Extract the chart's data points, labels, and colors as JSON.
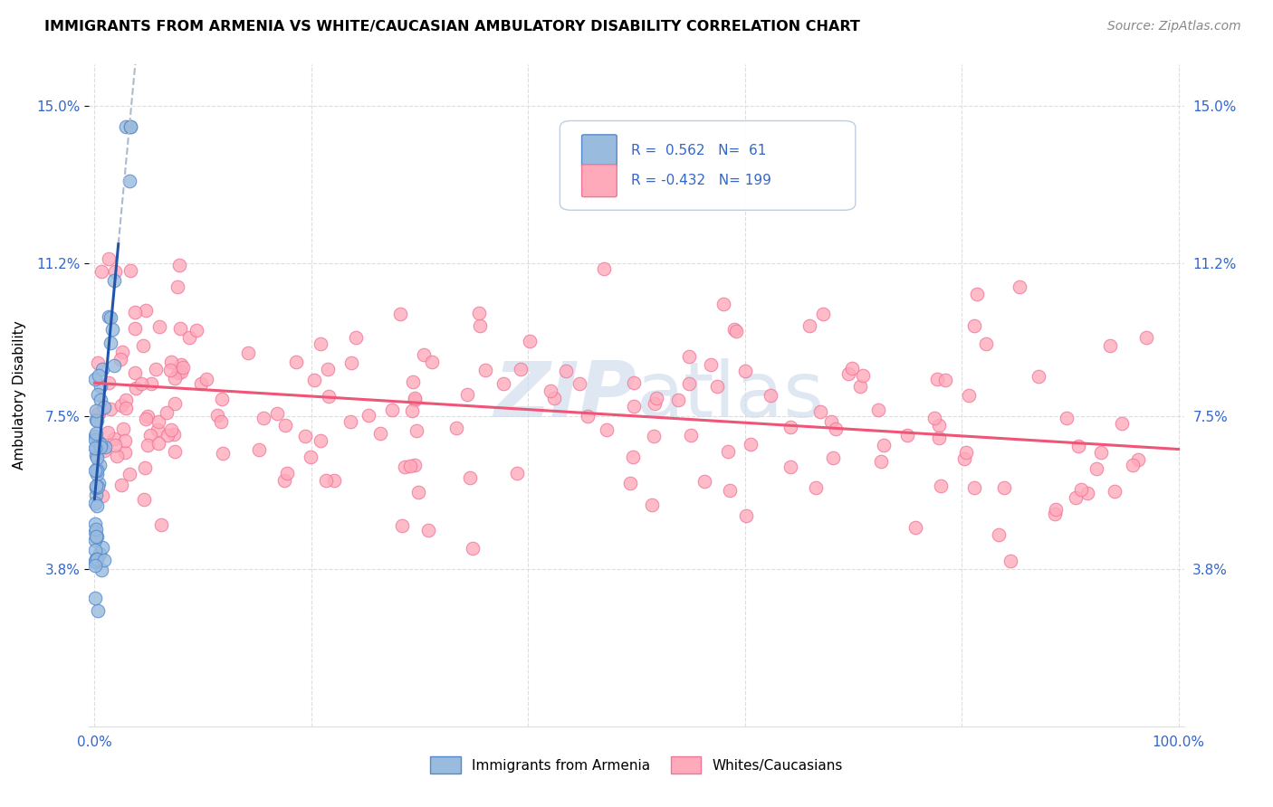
{
  "title": "IMMIGRANTS FROM ARMENIA VS WHITE/CAUCASIAN AMBULATORY DISABILITY CORRELATION CHART",
  "source": "Source: ZipAtlas.com",
  "ylabel": "Ambulatory Disability",
  "yticks": [
    0.038,
    0.075,
    0.112,
    0.15
  ],
  "ytick_labels": [
    "3.8%",
    "7.5%",
    "11.2%",
    "15.0%"
  ],
  "xticks": [
    0.0,
    0.2,
    0.4,
    0.6,
    0.8,
    1.0
  ],
  "xtick_labels": [
    "0.0%",
    "",
    "",
    "",
    "",
    "100.0%"
  ],
  "blue_color": "#99BBDD",
  "pink_color": "#FFAABB",
  "blue_edge_color": "#5588CC",
  "pink_edge_color": "#EE7799",
  "blue_line_color": "#2255AA",
  "pink_line_color": "#EE5577",
  "blue_dash_color": "#AABBCC",
  "watermark_color": "#D0DDED",
  "tick_color": "#3366CC",
  "grid_color": "#DDDDDD",
  "legend_label1": "Immigrants from Armenia",
  "legend_label2": "Whites/Caucasians",
  "legend_r1": "R =  0.562   N=  61",
  "legend_r2": "R = -0.432   N= 199",
  "xlim": [
    -0.005,
    1.005
  ],
  "ylim": [
    0.0,
    0.16
  ],
  "plot_ylim": [
    0.0,
    0.16
  ]
}
